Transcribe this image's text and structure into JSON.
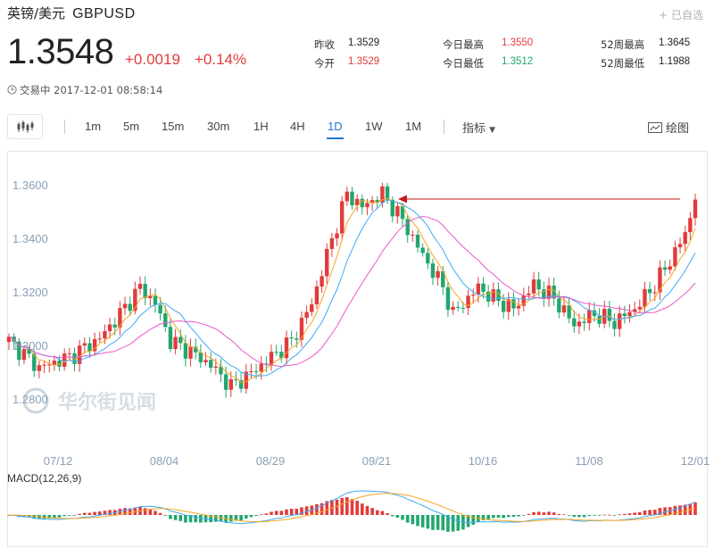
{
  "header": {
    "name": "英镑/美元",
    "code": "GBPUSD",
    "favorite_label": "已自选"
  },
  "quote": {
    "price": "1.3548",
    "change": "+0.0019",
    "change_pct": "+0.14%"
  },
  "status": {
    "state": "交易中",
    "timestamp": "2017-12-01 08:58:14"
  },
  "stats": [
    {
      "label": "昨收",
      "value": "1.3529",
      "color": "dark"
    },
    {
      "label": "今开",
      "value": "1.3529",
      "color": "red"
    },
    {
      "label": "今日最高",
      "value": "1.3550",
      "color": "red"
    },
    {
      "label": "今日最低",
      "value": "1.3512",
      "color": "green"
    },
    {
      "label": "52周最高",
      "value": "1.3645",
      "color": "dark"
    },
    {
      "label": "52周最低",
      "value": "1.1988",
      "color": "dark"
    }
  ],
  "toolbar": {
    "chart_type_icon": "candlestick-icon",
    "timeframes": [
      "1m",
      "5m",
      "15m",
      "30m",
      "1H",
      "4H",
      "1D",
      "1W",
      "1M"
    ],
    "active_timeframe": "1D",
    "indicator_label": "指标",
    "draw_label": "绘图"
  },
  "chart": {
    "watermark": "华尔街见闻",
    "macd_label": "MACD(12,26,9)",
    "colors": {
      "up": "#e23b3b",
      "down": "#22a66e",
      "ma_short": "#f5a623",
      "ma_mid": "#3fa9f5",
      "ma_long": "#e85ac8",
      "arrow": "#c41a1a",
      "accent": "#1e78d4"
    }
  },
  "chart_data": {
    "type": "candlestick",
    "ylim": [
      1.28,
      1.366
    ],
    "y_ticks": [
      "1.2800",
      "1.3000",
      "1.3200",
      "1.3400",
      "1.3600"
    ],
    "x_ticks": [
      "07/12",
      "08/04",
      "08/29",
      "09/21",
      "10/16",
      "11/08",
      "12/01"
    ],
    "key_points": [
      {
        "date": "07/12",
        "close": 1.29
      },
      {
        "date": "08/04",
        "close": 1.305
      },
      {
        "date": "08/29",
        "close": 1.29
      },
      {
        "date": "09/21",
        "close": 1.355
      },
      {
        "date": "10/16",
        "close": 1.32
      },
      {
        "date": "11/08",
        "close": 1.31
      },
      {
        "date": "12/01",
        "close": 1.3548
      }
    ],
    "grid": false
  }
}
